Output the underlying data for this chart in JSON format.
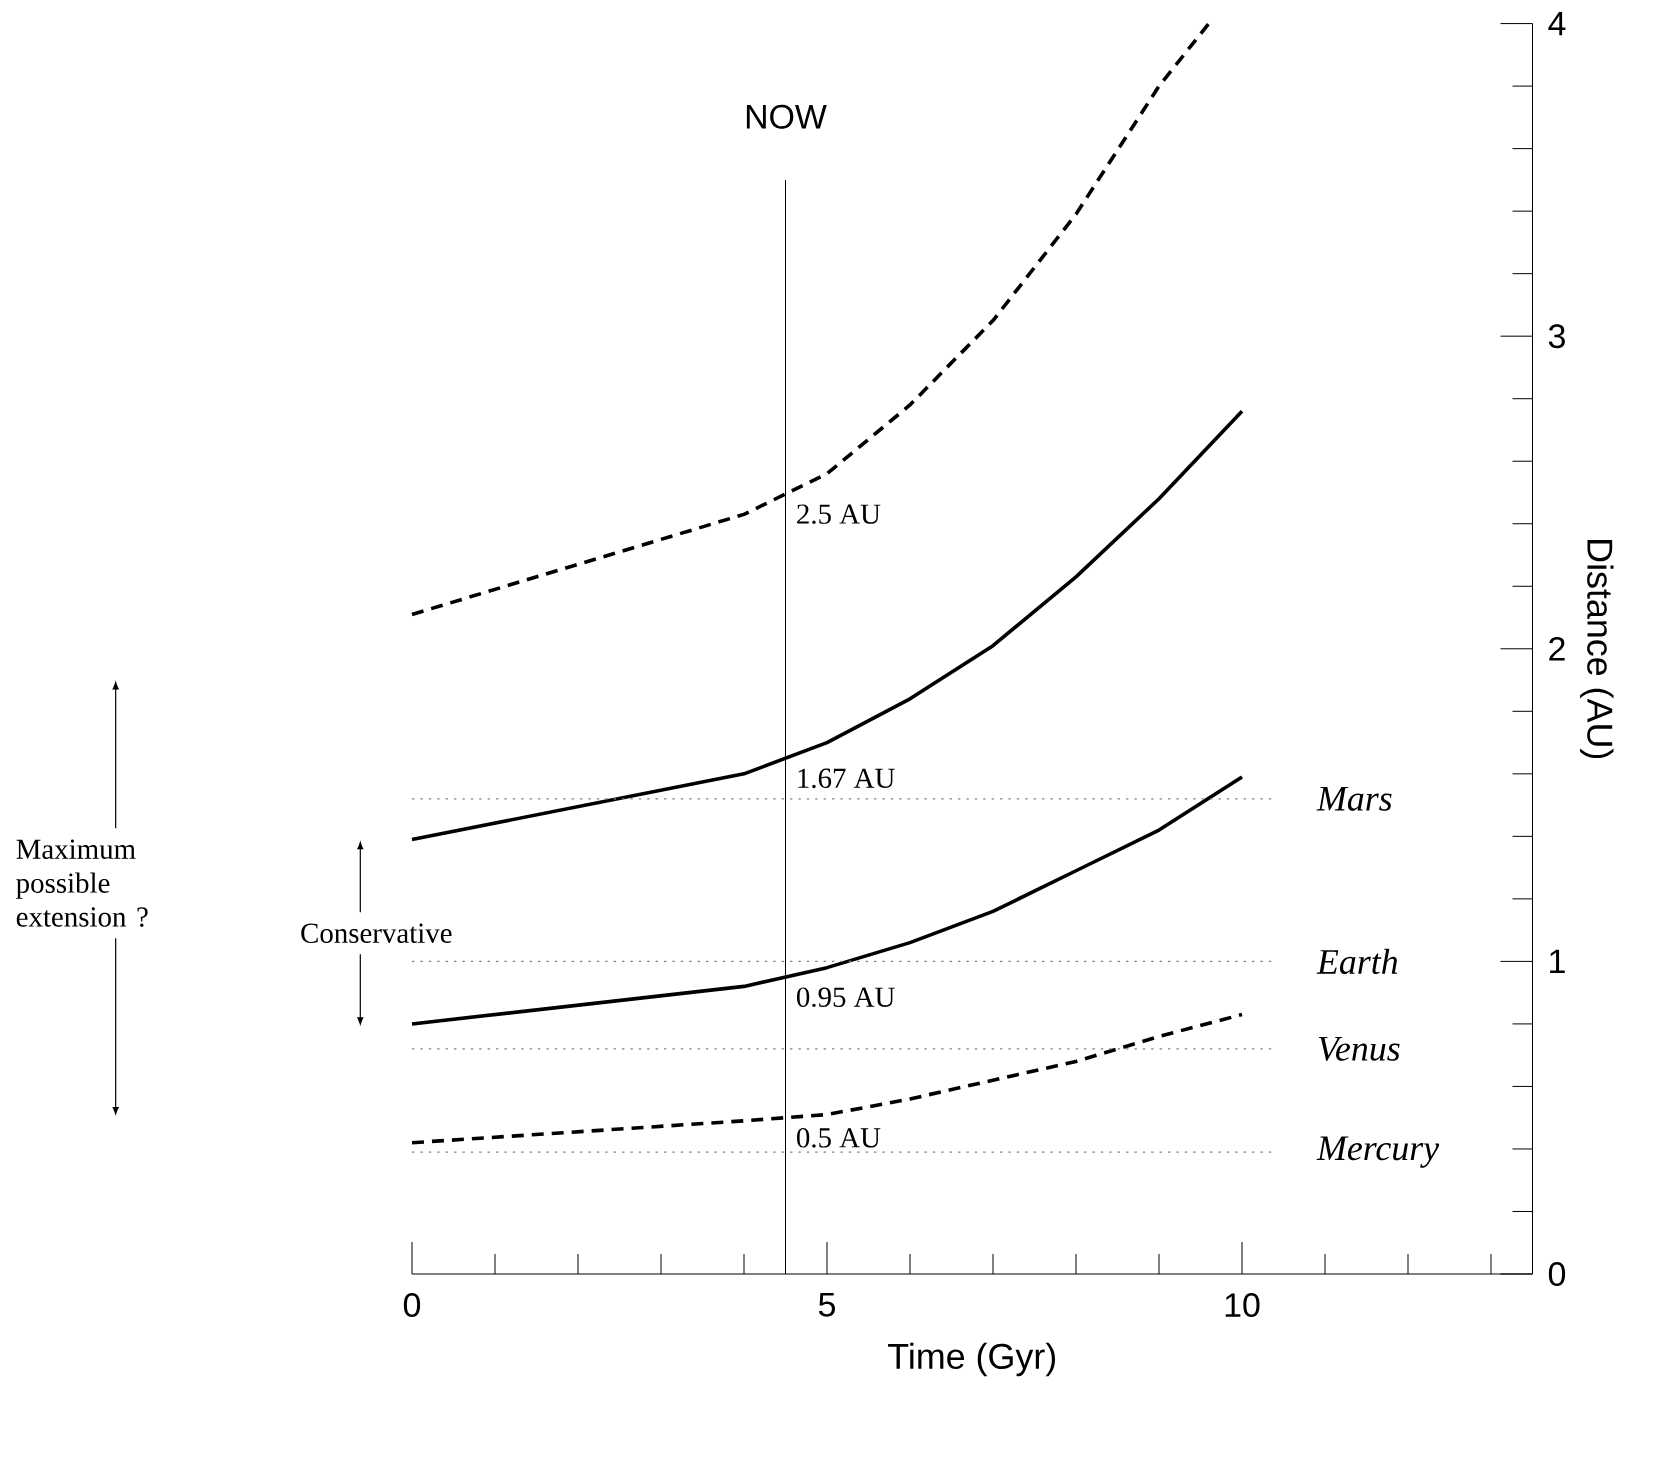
{
  "chart_data": {
    "type": "line",
    "xlabel": "Time  (Gyr)",
    "ylabel": "Distance (AU)",
    "xlim": [
      0,
      13.5
    ],
    "ylim": [
      0,
      4
    ],
    "xticks": [
      0,
      {
        "value": 1,
        "label": null
      },
      {
        "value": 2,
        "label": null
      },
      {
        "value": 3,
        "label": null
      },
      {
        "value": 4,
        "label": null
      },
      5,
      {
        "value": 6,
        "label": null
      },
      {
        "value": 7,
        "label": null
      },
      {
        "value": 8,
        "label": null
      },
      {
        "value": 9,
        "label": null
      },
      10,
      {
        "value": 11,
        "label": null
      },
      {
        "value": 12,
        "label": null
      },
      {
        "value": 13,
        "label": null
      }
    ],
    "yticks": [
      0,
      {
        "value": 0.2,
        "label": null
      },
      {
        "value": 0.4,
        "label": null
      },
      {
        "value": 0.6,
        "label": null
      },
      {
        "value": 0.8,
        "label": null
      },
      1,
      {
        "value": 1.2,
        "label": null
      },
      {
        "value": 1.4,
        "label": null
      },
      {
        "value": 1.6,
        "label": null
      },
      {
        "value": 1.8,
        "label": null
      },
      2,
      {
        "value": 2.2,
        "label": null
      },
      {
        "value": 2.4,
        "label": null
      },
      {
        "value": 2.6,
        "label": null
      },
      {
        "value": 2.8,
        "label": null
      },
      3,
      {
        "value": 3.2,
        "label": null
      },
      {
        "value": 3.4,
        "label": null
      },
      {
        "value": 3.6,
        "label": null
      },
      {
        "value": 3.8,
        "label": null
      },
      4
    ],
    "grid": false,
    "marker": "none",
    "series": [
      {
        "color": "#000000",
        "line_style": "dashed",
        "x": [
          0,
          4,
          5,
          6,
          7,
          8,
          9,
          9.6
        ],
        "values": [
          2.11,
          2.43,
          2.56,
          2.78,
          3.05,
          3.39,
          3.8,
          4.0
        ]
      },
      {
        "color": "#000000",
        "line_style": "solid",
        "x": [
          0,
          4,
          5,
          6,
          7,
          8,
          9,
          10
        ],
        "values": [
          1.39,
          1.6,
          1.7,
          1.84,
          2.01,
          2.23,
          2.48,
          2.76
        ]
      },
      {
        "color": "#000000",
        "line_style": "solid",
        "x": [
          0,
          4,
          5,
          6,
          7,
          8,
          9,
          10
        ],
        "values": [
          0.8,
          0.92,
          0.98,
          1.06,
          1.16,
          1.29,
          1.42,
          1.59
        ]
      },
      {
        "color": "#000000",
        "line_style": "dashed",
        "x": [
          0,
          4,
          5,
          6,
          7,
          8,
          9,
          10
        ],
        "values": [
          0.42,
          0.49,
          0.51,
          0.56,
          0.62,
          0.68,
          0.76,
          0.83
        ]
      }
    ],
    "ref_lines": [
      {
        "axis": "x",
        "value": 4.5,
        "label": "NOW",
        "line_style": "solid"
      },
      {
        "axis": "y",
        "value": 1.52,
        "label": "Mars",
        "line_style": "dotted"
      },
      {
        "axis": "y",
        "value": 1.0,
        "label": "Earth",
        "line_style": "dotted"
      },
      {
        "axis": "y",
        "value": 0.72,
        "label": "Venus",
        "line_style": "dotted"
      },
      {
        "axis": "y",
        "value": 0.39,
        "label": "Mercury",
        "line_style": "dotted"
      }
    ],
    "annotations": [
      "2.5 AU",
      "1.67 AU",
      "0.95 AU",
      "0.5 AU",
      "Maximum possible extension ?",
      "Conservative"
    ]
  }
}
